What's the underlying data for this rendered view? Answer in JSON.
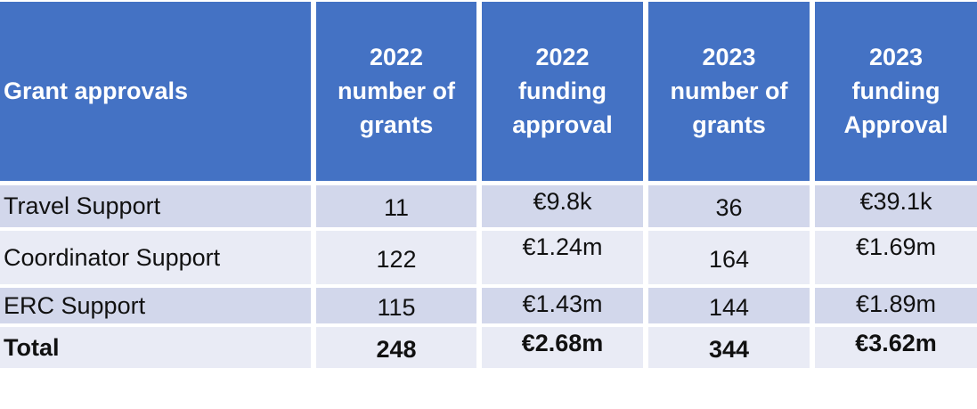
{
  "colors": {
    "accent": "#4472C4",
    "bandDark": "#D2D7EB",
    "bandLight": "#E9EBF5",
    "headerText": "#FFFFFF",
    "bodyText": "#111111"
  },
  "table": {
    "header": [
      "Grant approvals",
      "2022\nnumber of\ngrants",
      "2022\nfunding\napproval",
      "2023\nnumber of\ngrants",
      "2023\nfunding\nApproval"
    ],
    "rows": [
      {
        "cells": [
          "Travel Support",
          "11",
          "€9.8k",
          "36",
          "€39.1k"
        ]
      },
      {
        "cells": [
          "Coordinator Support",
          "122",
          "€1.24m",
          "164",
          "€1.69m"
        ]
      },
      {
        "cells": [
          "ERC Support",
          "115",
          "€1.43m",
          "144",
          "€1.89m"
        ]
      },
      {
        "cells": [
          "Total",
          "248",
          "€2.68m",
          "344",
          "€3.62m"
        ]
      }
    ]
  },
  "chart_data": {
    "type": "table",
    "title": "Grant approvals",
    "columns": [
      "Grant approvals",
      "2022 number of grants",
      "2022 funding approval",
      "2023 number of grants",
      "2023 funding Approval"
    ],
    "rows": [
      [
        "Travel Support",
        11,
        "€9.8k",
        36,
        "€39.1k"
      ],
      [
        "Coordinator Support",
        122,
        "€1.24m",
        164,
        "€1.69m"
      ],
      [
        "ERC Support",
        115,
        "€1.43m",
        144,
        "€1.89m"
      ],
      [
        "Total",
        248,
        "€2.68m",
        344,
        "€3.62m"
      ]
    ],
    "notes": "Banded table: header row blue (#4472C4, white bold text); data rows alternate lavender (#D2D7EB) and pale lavender (#E9EBF5); Total row bold."
  }
}
